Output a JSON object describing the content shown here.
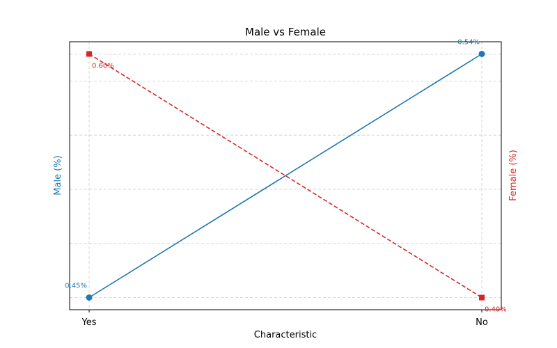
{
  "chart_data": {
    "type": "line",
    "title": "Male vs Female",
    "xlabel": "Characteristic",
    "categories": [
      "Yes",
      "No"
    ],
    "grid": true,
    "series": [
      {
        "name": "Male (%)",
        "axis": "left",
        "ylabel": "Male (%)",
        "values": [
          0.45,
          0.54
        ],
        "labels": [
          "0.45%",
          "0.54%"
        ],
        "color": "#1f77b4",
        "marker": "circle",
        "line_style": "solid"
      },
      {
        "name": "Female (%)",
        "axis": "right",
        "ylabel": "Female (%)",
        "values": [
          0.6,
          0.4
        ],
        "labels": [
          "0.60%",
          "0.40%"
        ],
        "color": "#d62728",
        "marker": "square",
        "line_style": "dashed"
      }
    ],
    "y_left_range": [
      0.4455,
      0.5445
    ],
    "y_right_range": [
      0.39,
      0.61
    ]
  }
}
